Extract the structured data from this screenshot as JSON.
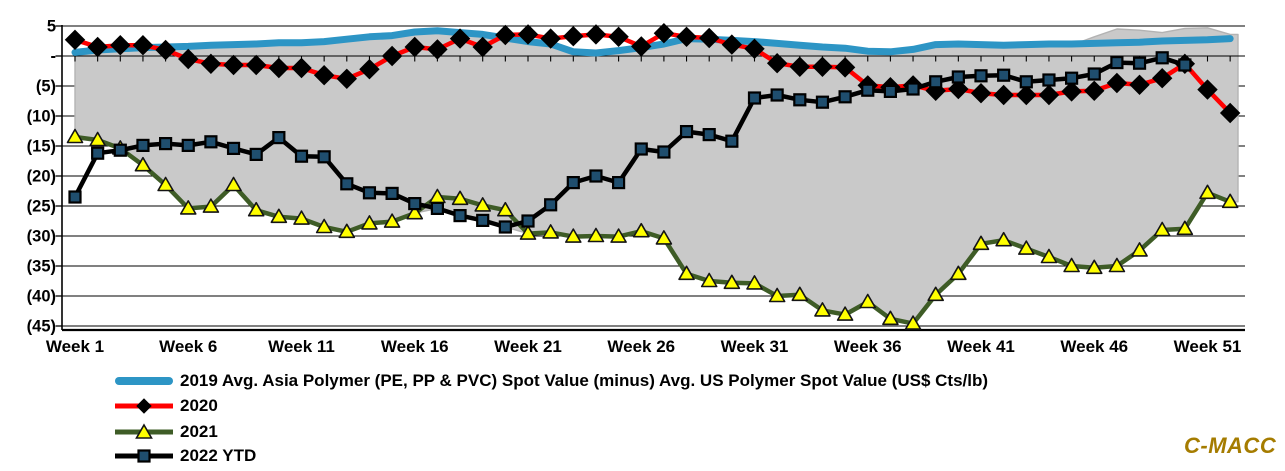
{
  "branding": {
    "logo_text": "C-MACC",
    "logo_color": "#A57C00"
  },
  "chart_data": {
    "type": "line",
    "title": "",
    "xlabel": "",
    "ylabel": "",
    "weeks": 52,
    "x_tick_weeks": [
      1,
      6,
      11,
      16,
      21,
      26,
      31,
      36,
      41,
      46,
      51
    ],
    "x_tick_labels": [
      "Week 1",
      "Week 6",
      "Week 11",
      "Week 16",
      "Week 21",
      "Week 26",
      "Week 31",
      "Week 36",
      "Week 41",
      "Week 46",
      "Week 51"
    ],
    "ylim": [
      -45,
      5
    ],
    "y_ticks": [
      5,
      0,
      -5,
      -10,
      -15,
      -20,
      -25,
      -30,
      -35,
      -40,
      -45
    ],
    "y_tick_labels": [
      "5",
      "-",
      "(5)",
      "(10)",
      "(15)",
      "(20)",
      "(25)",
      "(30)",
      "(35)",
      "(40)",
      "(45)"
    ],
    "grid": "horizontal-black",
    "legend_position": "bottom-left",
    "axis_color": "#000000",
    "series": [
      {
        "name": "2019 Avg. Asia Polymer (PE, PP & PVC) Spot Value (minus) Avg. US Polymer Spot Value (US$ Cts/lb)",
        "color": "#2D95C5",
        "marker": "none",
        "line_width": 7,
        "values": [
          0.6,
          1.0,
          1.2,
          1.4,
          1.5,
          1.6,
          1.8,
          1.9,
          2.0,
          2.2,
          2.2,
          2.4,
          2.8,
          3.2,
          3.4,
          4.0,
          4.2,
          3.9,
          3.6,
          3.0,
          2.4,
          2.0,
          0.7,
          0.5,
          0.9,
          1.4,
          2.0,
          2.9,
          2.8,
          2.6,
          2.4,
          2.1,
          1.8,
          1.5,
          1.3,
          0.8,
          0.7,
          1.1,
          1.9,
          2.0,
          1.9,
          1.8,
          1.9,
          2.0,
          2.0,
          2.1,
          2.2,
          2.3,
          2.5,
          2.6,
          2.7,
          2.9
        ]
      },
      {
        "name": "2020",
        "color": "#FF0000",
        "marker": "diamond",
        "marker_color": "#000000",
        "line_width": 4.5,
        "values": [
          2.7,
          1.5,
          1.8,
          1.8,
          1.0,
          -0.5,
          -1.3,
          -1.5,
          -1.5,
          -2.0,
          -2.0,
          -3.2,
          -3.8,
          -2.2,
          0.0,
          1.5,
          1.1,
          2.9,
          1.5,
          3.5,
          3.6,
          2.9,
          3.3,
          3.6,
          3.2,
          1.6,
          3.8,
          3.2,
          3.0,
          1.9,
          1.2,
          -1.2,
          -1.8,
          -1.8,
          -1.9,
          -4.9,
          -5.2,
          -4.9,
          -5.8,
          -5.5,
          -6.2,
          -6.5,
          -6.5,
          -6.5,
          -5.9,
          -5.8,
          -4.5,
          -4.8,
          -3.7,
          -1.3,
          -5.6,
          -9.5
        ]
      },
      {
        "name": "2021",
        "color": "#3E5C26",
        "marker": "triangle",
        "marker_color": "#FFFF00",
        "line_width": 4.5,
        "values": [
          -13.5,
          -14.0,
          -15.4,
          -18.2,
          -21.5,
          -25.4,
          -25.1,
          -21.5,
          -25.7,
          -26.8,
          -27.1,
          -28.5,
          -29.3,
          -27.9,
          -27.6,
          -26.2,
          -23.5,
          -23.8,
          -24.9,
          -25.7,
          -29.6,
          -29.4,
          -30.1,
          -30.0,
          -30.1,
          -29.2,
          -30.4,
          -36.3,
          -37.5,
          -37.8,
          -37.9,
          -40.0,
          -39.8,
          -42.4,
          -43.1,
          -41.0,
          -43.8,
          -44.6,
          -39.8,
          -36.3,
          -31.3,
          -30.7,
          -32.1,
          -33.5,
          -35.0,
          -35.3,
          -35.0,
          -32.4,
          -29.0,
          -28.8,
          -22.8,
          -24.3
        ]
      },
      {
        "name": "2022 YTD",
        "color": "#000000",
        "marker": "square",
        "marker_color": "#1F4E6E",
        "line_width": 4.5,
        "values": [
          -23.5,
          -16.2,
          -15.7,
          -14.9,
          -14.6,
          -14.9,
          -14.3,
          -15.4,
          -16.4,
          -13.6,
          -16.7,
          -16.8,
          -21.3,
          -22.8,
          -22.9,
          -24.6,
          -25.4,
          -26.6,
          -27.4,
          -28.5,
          -27.5,
          -24.8,
          -21.1,
          -20.0,
          -21.1,
          -15.5,
          -16.0,
          -12.6,
          -13.1,
          -14.2,
          -7.0,
          -6.5,
          -7.3,
          -7.7,
          -6.8,
          -5.7,
          -5.9,
          -5.5,
          -4.3,
          -3.5,
          -3.3,
          -3.2,
          -4.3,
          -4.0,
          -3.7,
          -3.0,
          -1.1,
          -1.2,
          -0.3,
          -1.5
        ]
      }
    ],
    "band": {
      "name": "gray-envelope",
      "color": "#C9C9C9",
      "edge_color": "#B3B3B3",
      "top": [
        0.0,
        0.6,
        0.9,
        1.1,
        1.2,
        1.3,
        1.5,
        1.6,
        1.7,
        1.9,
        1.9,
        2.1,
        2.5,
        2.9,
        3.1,
        3.7,
        3.9,
        3.6,
        3.3,
        2.7,
        2.1,
        1.7,
        0.5,
        0.3,
        0.6,
        1.1,
        1.7,
        2.6,
        2.5,
        2.3,
        2.1,
        1.8,
        1.5,
        1.3,
        1.1,
        0.6,
        0.5,
        0.9,
        1.6,
        1.7,
        1.6,
        1.5,
        1.6,
        1.7,
        1.8,
        3.2,
        4.5,
        4.3,
        3.9,
        4.6,
        4.7,
        3.6
      ],
      "bottom": [
        -13.5,
        -14.0,
        -15.4,
        -18.2,
        -21.5,
        -25.4,
        -25.1,
        -21.5,
        -25.7,
        -26.8,
        -27.1,
        -28.5,
        -29.3,
        -27.9,
        -27.6,
        -26.2,
        -25.4,
        -26.6,
        -27.4,
        -28.5,
        -29.6,
        -29.4,
        -30.1,
        -30.0,
        -30.1,
        -29.2,
        -30.4,
        -36.3,
        -37.5,
        -37.8,
        -37.9,
        -40.0,
        -39.8,
        -42.4,
        -43.1,
        -41.0,
        -43.8,
        -44.6,
        -39.8,
        -36.3,
        -31.3,
        -30.7,
        -32.1,
        -33.5,
        -35.0,
        -35.3,
        -35.0,
        -32.4,
        -29.0,
        -28.8,
        -22.8,
        -24.3
      ]
    }
  }
}
